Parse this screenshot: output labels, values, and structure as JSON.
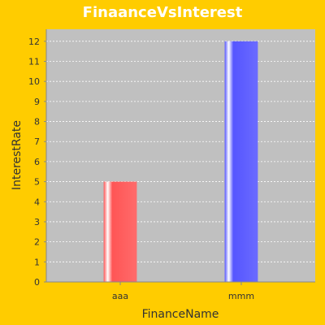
{
  "chart_data": {
    "type": "bar",
    "title": "FinaanceVsInterest",
    "xlabel": "FinanceName",
    "ylabel": "InterestRate",
    "categories": [
      "aaa",
      "mmm"
    ],
    "values": [
      5,
      12
    ],
    "bar_colors": [
      "#FF5555",
      "#5555FF"
    ],
    "ylim": [
      0,
      12.6
    ],
    "yticks": [
      0,
      1,
      2,
      3,
      4,
      5,
      6,
      7,
      8,
      9,
      10,
      11,
      12
    ],
    "grid": true,
    "legend": "none"
  },
  "colors": {
    "background": "#FFCC00",
    "plot_background": "#C0C0C0",
    "gridline": "#FFFFFF"
  }
}
